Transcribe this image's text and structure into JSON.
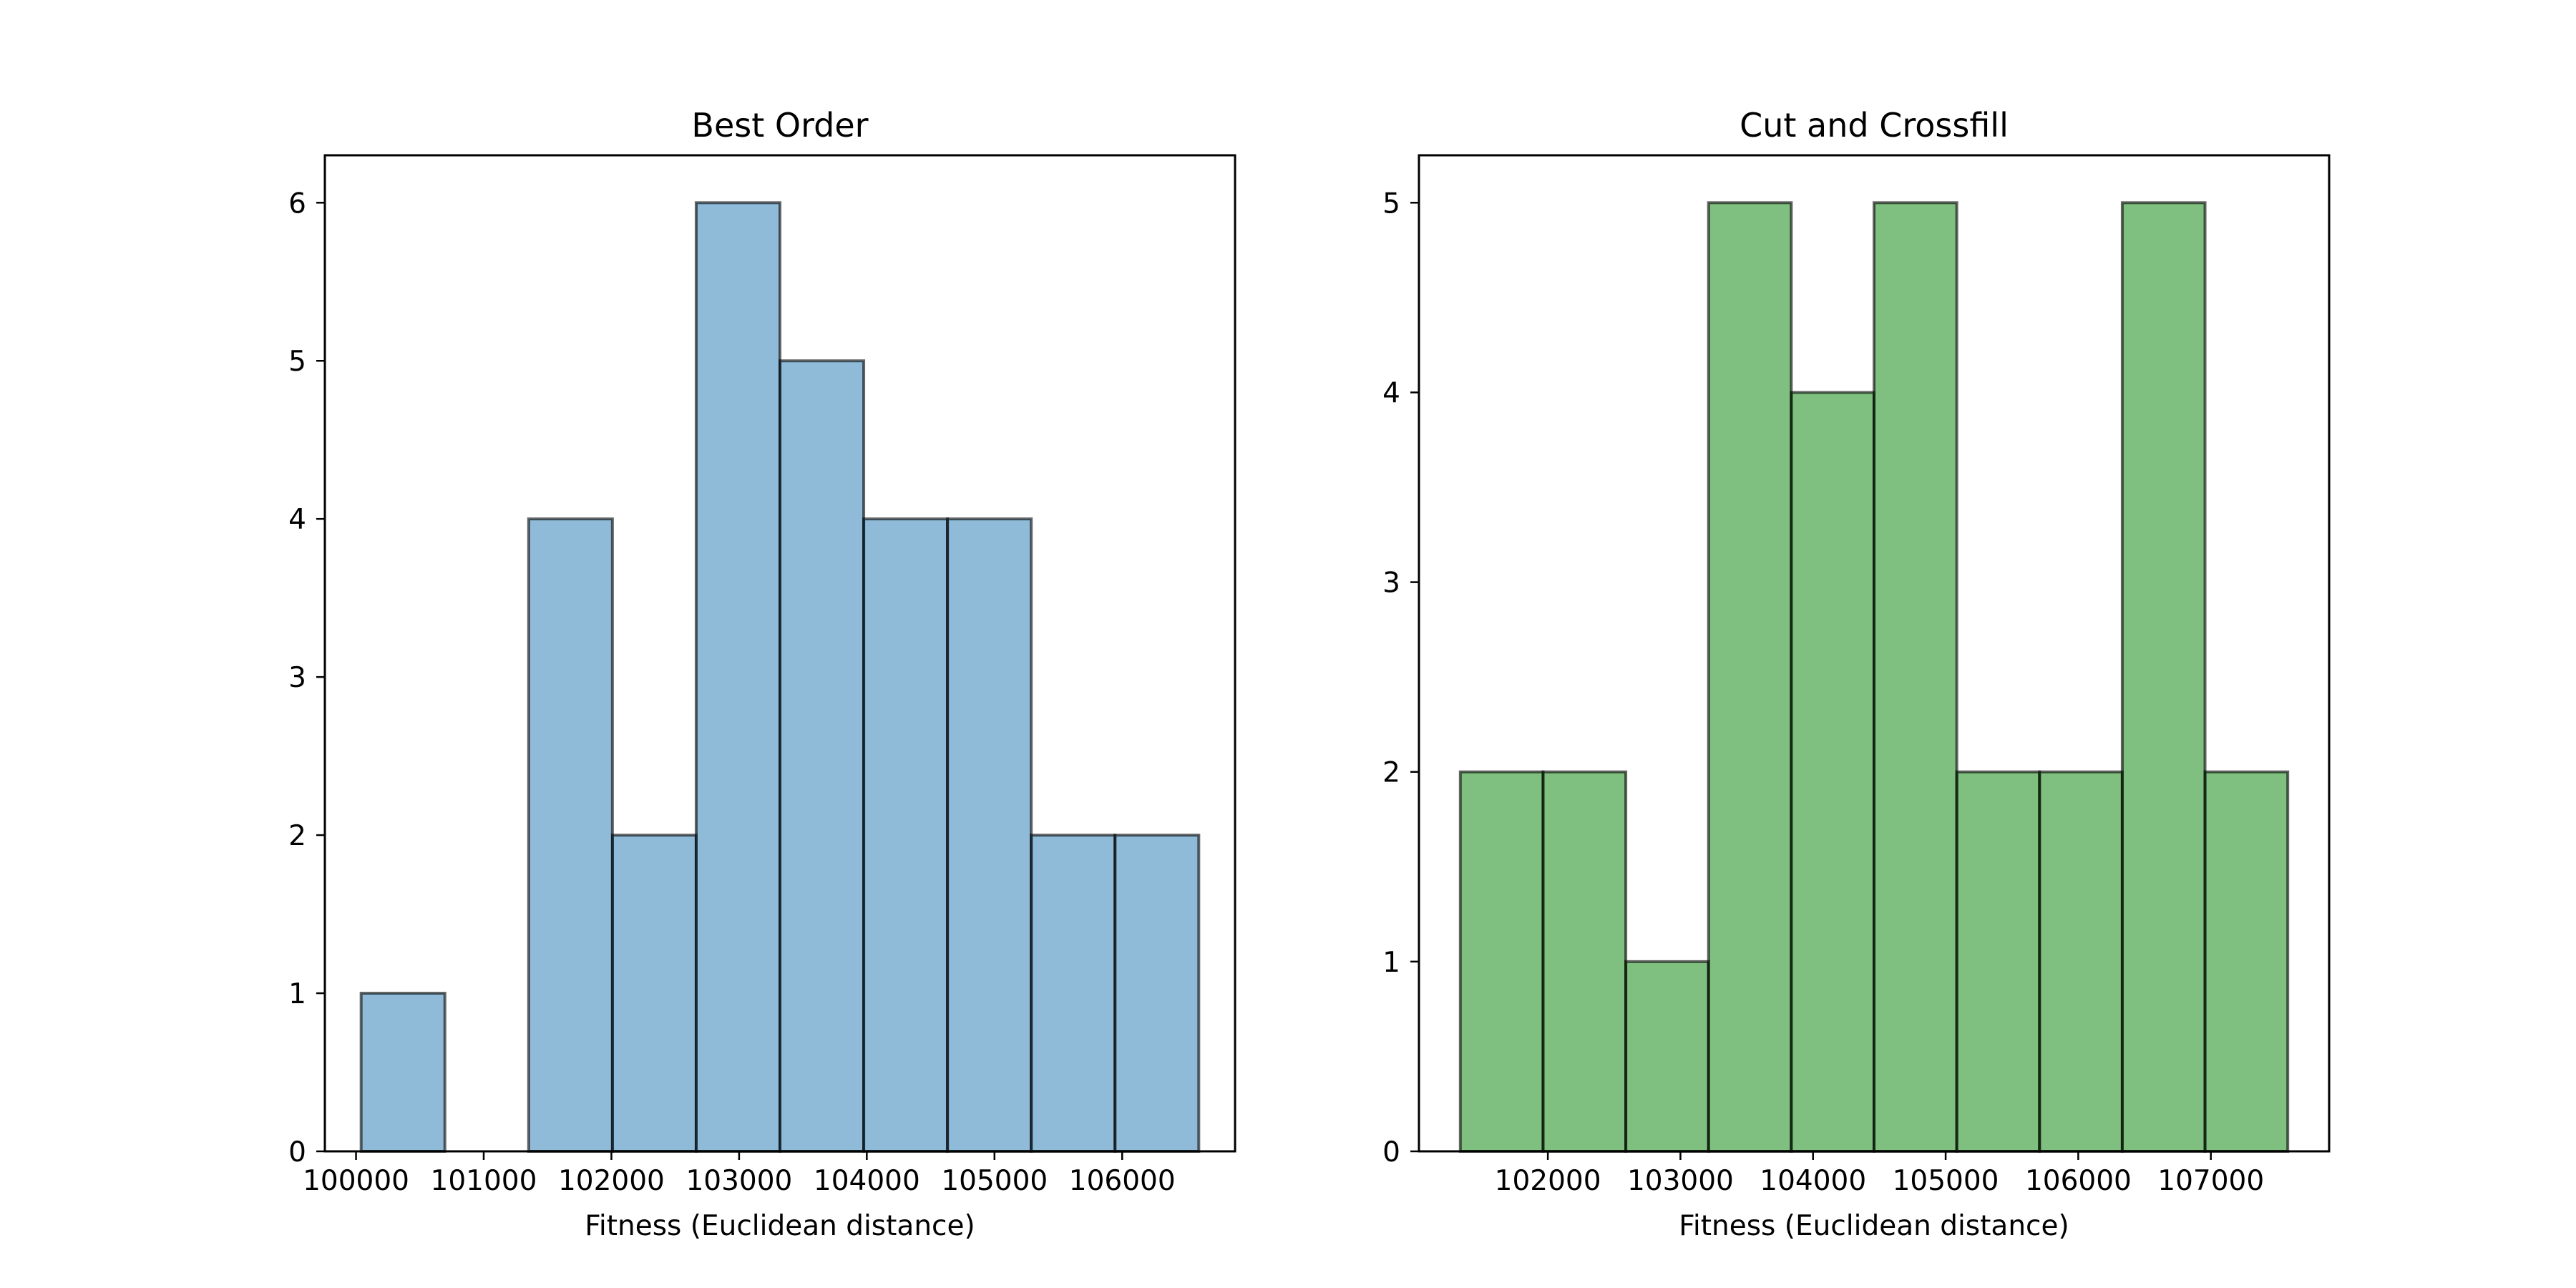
{
  "chart_data": [
    {
      "type": "bar",
      "title": "Best Order",
      "xlabel": "Fitness (Euclidean distance)",
      "ylabel": "",
      "bar_color": "#1f77b4",
      "bar_opacity": 0.5,
      "edge_color": "#000000",
      "bin_edges": [
        100040,
        100696,
        101352,
        102008,
        102664,
        103320,
        103976,
        104632,
        105288,
        105944,
        106600
      ],
      "values": [
        1,
        0,
        4,
        2,
        6,
        5,
        4,
        4,
        2,
        2
      ],
      "xlim": [
        99756,
        106884
      ],
      "ylim": [
        0,
        6.3
      ],
      "xticks": [
        100000,
        101000,
        102000,
        103000,
        104000,
        105000,
        106000
      ],
      "yticks": [
        0,
        1,
        2,
        3,
        4,
        5,
        6
      ],
      "grid": false,
      "legend": "none"
    },
    {
      "type": "bar",
      "title": "Cut and Crossfill",
      "xlabel": "Fitness (Euclidean distance)",
      "ylabel": "",
      "bar_color": "#008000",
      "bar_opacity": 0.5,
      "edge_color": "#000000",
      "bin_edges": [
        101340,
        101964,
        102588,
        103212,
        103836,
        104460,
        105084,
        105708,
        106332,
        106956,
        107580
      ],
      "values": [
        2,
        2,
        1,
        5,
        4,
        5,
        2,
        2,
        5,
        2
      ],
      "xlim": [
        101028,
        107892
      ],
      "ylim": [
        0,
        5.25
      ],
      "xticks": [
        102000,
        103000,
        104000,
        105000,
        106000,
        107000
      ],
      "yticks": [
        0,
        1,
        2,
        3,
        4,
        5
      ],
      "grid": false,
      "legend": "none"
    }
  ]
}
